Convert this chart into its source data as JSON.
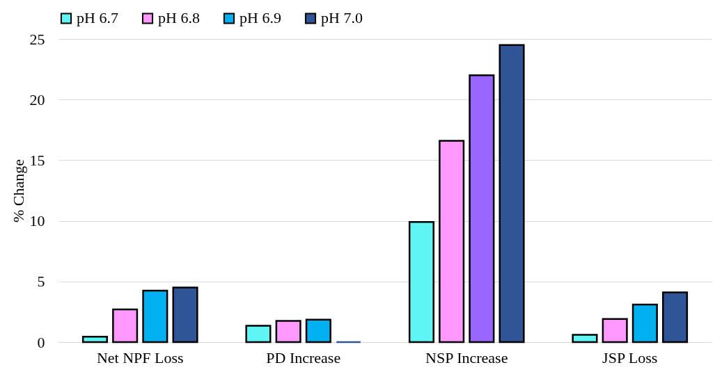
{
  "chart_data": {
    "type": "bar",
    "ylabel": "% Change",
    "categories": [
      "Net NPF Loss",
      "PD Increase",
      "NSP Increase",
      "JSP Loss"
    ],
    "series": [
      {
        "name": "pH 6.7",
        "color": "#5ff5f5",
        "values": [
          0.45,
          1.35,
          9.9,
          0.6
        ]
      },
      {
        "name": "pH 6.8",
        "color": "#ff99ff",
        "values": [
          2.7,
          1.75,
          16.6,
          1.9
        ]
      },
      {
        "name": "pH 6.9",
        "color": "#00b0f0",
        "colors": [
          "#00b0f0",
          "#00b0f0",
          "#9966ff",
          "#00b0f0"
        ],
        "values": [
          4.25,
          1.85,
          22.0,
          3.1
        ]
      },
      {
        "name": "pH 7.0",
        "color": "#2f5597",
        "values": [
          4.5,
          0,
          24.5,
          4.1
        ]
      }
    ],
    "ylim": [
      0,
      25
    ],
    "yticks": [
      0,
      5,
      10,
      15,
      20,
      25
    ],
    "grid": "y",
    "legend": "top"
  }
}
